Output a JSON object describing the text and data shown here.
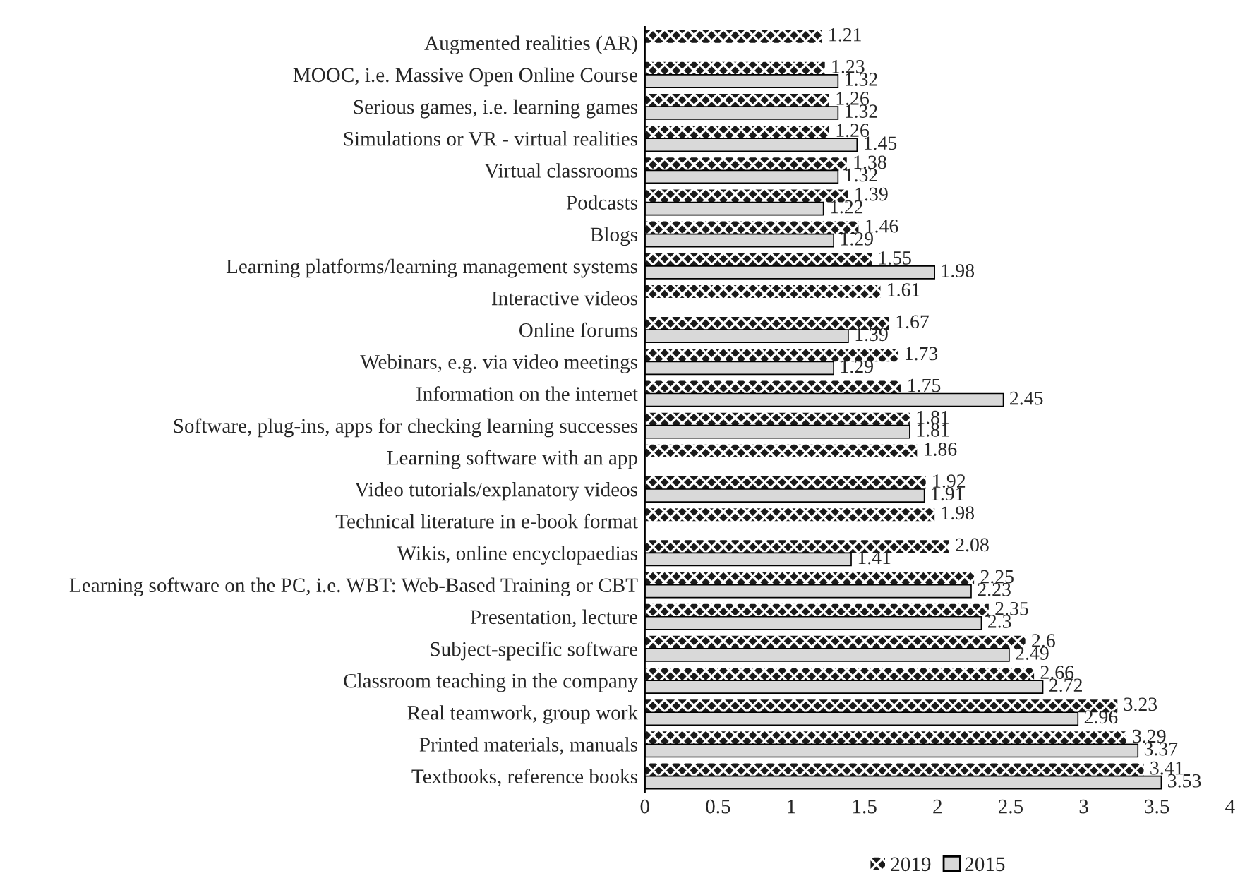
{
  "chart_data": {
    "type": "bar",
    "orientation": "horizontal",
    "categories": [
      "Augmented realities (AR)",
      "MOOC, i.e. Massive Open Online Course",
      "Serious games, i.e. learning games",
      "Simulations or VR - virtual realities",
      "Virtual classrooms",
      "Podcasts",
      "Blogs",
      "Learning platforms/learning management systems",
      "Interactive videos",
      "Online forums",
      "Webinars, e.g. via video meetings",
      "Information on the internet",
      "Software, plug-ins, apps for checking learning successes",
      "Learning software with an app",
      "Video tutorials/explanatory videos",
      "Technical literature in e-book format",
      "Wikis, online encyclopaedias",
      "Learning software on the PC, i.e. WBT: Web-Based Training or CBT",
      "Presentation, lecture",
      "Subject-specific software",
      "Classroom teaching in the company",
      "Real teamwork, group work",
      "Printed materials, manuals",
      "Textbooks, reference books"
    ],
    "series": [
      {
        "name": "2019",
        "color": "#1a1a1a",
        "values": [
          1.21,
          1.23,
          1.26,
          1.26,
          1.38,
          1.39,
          1.46,
          1.55,
          1.61,
          1.67,
          1.73,
          1.75,
          1.81,
          1.86,
          1.92,
          1.98,
          2.08,
          2.25,
          2.35,
          2.6,
          2.66,
          3.23,
          3.29,
          3.41
        ]
      },
      {
        "name": "2015",
        "color": "#d9d9d9",
        "values": [
          null,
          1.32,
          1.32,
          1.45,
          1.32,
          1.22,
          1.29,
          1.98,
          null,
          1.39,
          1.29,
          2.45,
          1.81,
          null,
          1.91,
          null,
          1.41,
          2.23,
          2.3,
          2.49,
          2.72,
          2.96,
          3.37,
          3.53
        ]
      }
    ],
    "xlim": [
      0,
      4
    ],
    "xticks": [
      0,
      0.5,
      1,
      1.5,
      2,
      2.5,
      3,
      3.5,
      4
    ],
    "data_labels": true,
    "grid": false,
    "legend": "bottom"
  }
}
